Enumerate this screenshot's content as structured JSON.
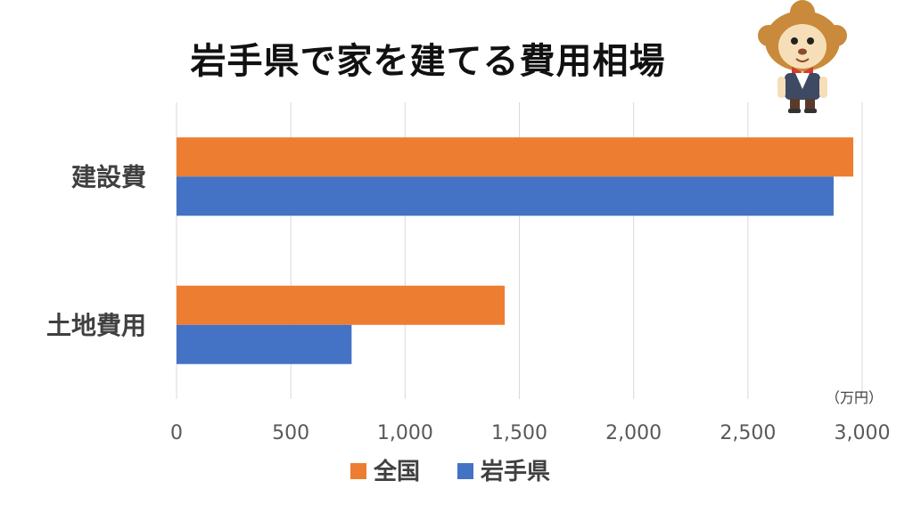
{
  "chart_data": {
    "type": "bar",
    "orientation": "horizontal",
    "title": "岩手県で家を建てる費用相場",
    "categories": [
      "建設費",
      "土地費用"
    ],
    "series": [
      {
        "name": "全国",
        "color": "#ED7D31",
        "values": [
          2961,
          1436
        ]
      },
      {
        "name": "岩手県",
        "color": "#4472C4",
        "values": [
          2875,
          766
        ]
      }
    ],
    "xlim": [
      0,
      3000
    ],
    "xticks": [
      0,
      500,
      1000,
      1500,
      2000,
      2500,
      3000
    ],
    "xtick_labels": [
      "0",
      "500",
      "1,000",
      "1,500",
      "2,000",
      "2,500",
      "3,000"
    ],
    "unit": "（万円）",
    "grid": true,
    "legend_position": "bottom"
  },
  "mascot": {
    "icon": "lion-mascot-icon"
  }
}
